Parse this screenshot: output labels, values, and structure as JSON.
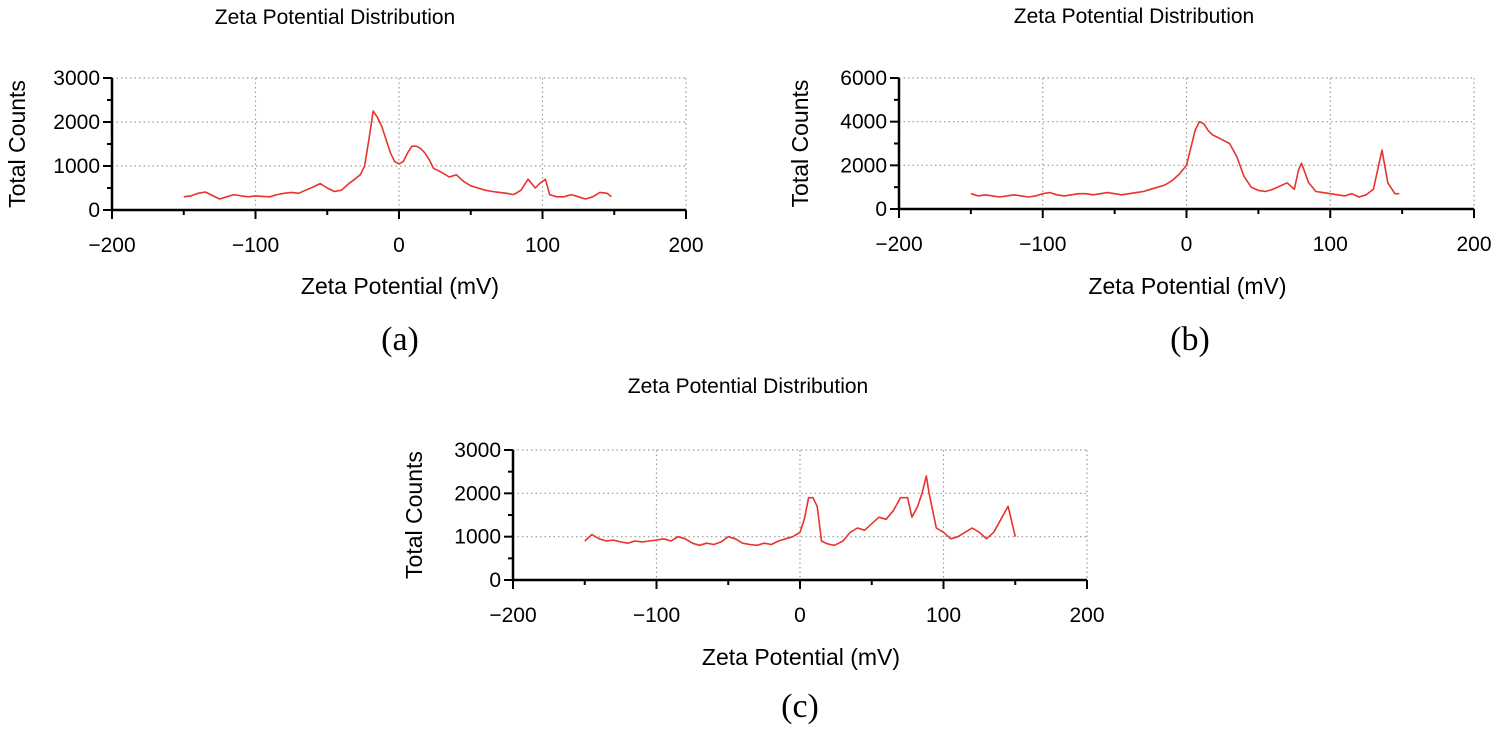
{
  "colors": {
    "series": "#e8332e"
  },
  "chart_data": [
    {
      "panel": "(a)",
      "type": "line",
      "title": "Zeta Potential Distribution",
      "xlabel": "Zeta Potential (mV)",
      "ylabel": "Total Counts",
      "xlim": [
        -200,
        200
      ],
      "ylim": [
        0,
        3000
      ],
      "xticks": [
        -200,
        -100,
        0,
        100,
        200
      ],
      "yticks": [
        0,
        1000,
        2000,
        3000
      ],
      "grid": true,
      "series": [
        {
          "name": "Total Counts",
          "x": [
            -150,
            -145,
            -140,
            -135,
            -130,
            -125,
            -120,
            -115,
            -110,
            -105,
            -100,
            -95,
            -90,
            -85,
            -80,
            -75,
            -70,
            -65,
            -60,
            -55,
            -50,
            -45,
            -40,
            -35,
            -30,
            -27,
            -24,
            -21,
            -18,
            -15,
            -12,
            -9,
            -6,
            -3,
            0,
            3,
            6,
            9,
            12,
            15,
            18,
            21,
            24,
            27,
            30,
            35,
            40,
            45,
            50,
            55,
            60,
            65,
            70,
            75,
            80,
            85,
            90,
            95,
            98,
            102,
            105,
            110,
            115,
            120,
            125,
            130,
            135,
            140,
            145,
            148
          ],
          "y": [
            300,
            320,
            380,
            410,
            330,
            250,
            300,
            350,
            320,
            300,
            320,
            310,
            300,
            350,
            380,
            400,
            380,
            450,
            520,
            600,
            500,
            420,
            450,
            600,
            720,
            800,
            1000,
            1600,
            2250,
            2100,
            1900,
            1600,
            1300,
            1100,
            1050,
            1100,
            1300,
            1450,
            1450,
            1400,
            1300,
            1150,
            950,
            900,
            850,
            750,
            800,
            650,
            550,
            500,
            450,
            420,
            400,
            380,
            350,
            450,
            700,
            500,
            600,
            700,
            350,
            300,
            300,
            350,
            300,
            250,
            300,
            400,
            380,
            300
          ]
        }
      ]
    },
    {
      "panel": "(b)",
      "type": "line",
      "title": "Zeta Potential Distribution",
      "xlabel": "Zeta Potential (mV)",
      "ylabel": "Total Counts",
      "xlim": [
        -200,
        200
      ],
      "ylim": [
        0,
        6000
      ],
      "xticks": [
        -200,
        -100,
        0,
        100,
        200
      ],
      "yticks": [
        0,
        2000,
        4000,
        6000
      ],
      "grid": true,
      "series": [
        {
          "name": "Total Counts",
          "x": [
            -150,
            -145,
            -140,
            -135,
            -130,
            -125,
            -120,
            -115,
            -110,
            -105,
            -100,
            -95,
            -90,
            -85,
            -80,
            -75,
            -70,
            -65,
            -60,
            -55,
            -50,
            -45,
            -40,
            -35,
            -30,
            -25,
            -20,
            -15,
            -10,
            -5,
            0,
            3,
            6,
            9,
            12,
            15,
            18,
            21,
            24,
            27,
            30,
            35,
            40,
            45,
            50,
            55,
            60,
            65,
            70,
            75,
            78,
            80,
            85,
            90,
            95,
            100,
            105,
            110,
            115,
            120,
            125,
            130,
            133,
            136,
            140,
            145,
            148
          ],
          "y": [
            700,
            600,
            650,
            600,
            550,
            600,
            650,
            600,
            550,
            600,
            700,
            750,
            650,
            600,
            650,
            700,
            700,
            650,
            700,
            750,
            700,
            650,
            700,
            750,
            800,
            900,
            1000,
            1100,
            1300,
            1600,
            2000,
            2800,
            3600,
            4000,
            3900,
            3600,
            3400,
            3300,
            3200,
            3100,
            3000,
            2400,
            1500,
            1000,
            850,
            800,
            900,
            1050,
            1200,
            900,
            1800,
            2100,
            1200,
            800,
            750,
            700,
            650,
            600,
            700,
            550,
            650,
            900,
            1800,
            2700,
            1200,
            700,
            700
          ]
        }
      ]
    },
    {
      "panel": "(c)",
      "type": "line",
      "title": "Zeta Potential Distribution",
      "xlabel": "Zeta Potential (mV)",
      "ylabel": "Total Counts",
      "xlim": [
        -200,
        200
      ],
      "ylim": [
        0,
        3000
      ],
      "xticks": [
        -200,
        -100,
        0,
        100,
        200
      ],
      "yticks": [
        0,
        1000,
        2000,
        3000
      ],
      "grid": true,
      "series": [
        {
          "name": "Total Counts",
          "x": [
            -150,
            -145,
            -140,
            -135,
            -130,
            -125,
            -120,
            -115,
            -110,
            -105,
            -100,
            -95,
            -90,
            -85,
            -80,
            -75,
            -70,
            -65,
            -60,
            -55,
            -50,
            -45,
            -40,
            -35,
            -30,
            -25,
            -20,
            -15,
            -10,
            -5,
            0,
            3,
            6,
            9,
            12,
            15,
            18,
            21,
            24,
            27,
            30,
            35,
            40,
            45,
            50,
            55,
            60,
            65,
            70,
            75,
            78,
            82,
            85,
            88,
            90,
            95,
            100,
            105,
            110,
            115,
            120,
            125,
            130,
            135,
            140,
            145,
            150
          ],
          "y": [
            900,
            1050,
            950,
            900,
            920,
            880,
            850,
            900,
            880,
            900,
            920,
            950,
            900,
            1000,
            950,
            850,
            800,
            850,
            820,
            880,
            1000,
            950,
            850,
            820,
            800,
            850,
            820,
            900,
            950,
            1000,
            1100,
            1400,
            1900,
            1900,
            1700,
            900,
            850,
            820,
            800,
            850,
            900,
            1100,
            1200,
            1150,
            1300,
            1450,
            1400,
            1600,
            1900,
            1900,
            1450,
            1700,
            2000,
            2400,
            2000,
            1200,
            1100,
            950,
            1000,
            1100,
            1200,
            1100,
            950,
            1100,
            1400,
            1700,
            1000
          ]
        }
      ]
    }
  ]
}
